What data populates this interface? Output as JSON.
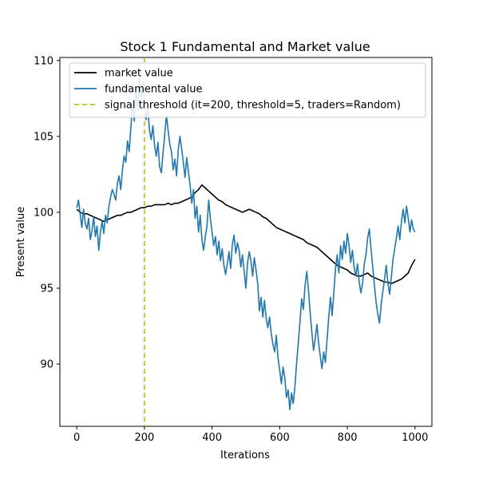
{
  "chart_data": {
    "type": "line",
    "title": "Stock 1 Fundamental and Market value",
    "xlabel": "Iterations",
    "ylabel": "Present value",
    "xlim": [
      -50,
      1050
    ],
    "ylim": [
      85.9,
      110.2
    ],
    "xticks": [
      0,
      200,
      400,
      600,
      800,
      1000
    ],
    "yticks": [
      90,
      95,
      100,
      105,
      110
    ],
    "legend_position": "top-left",
    "series": [
      {
        "name": "market value",
        "color": "#000000",
        "style": "solid",
        "points": [
          [
            0,
            100.2
          ],
          [
            10,
            100.0
          ],
          [
            20,
            99.9
          ],
          [
            30,
            99.9
          ],
          [
            40,
            99.8
          ],
          [
            50,
            99.7
          ],
          [
            60,
            99.6
          ],
          [
            70,
            99.5
          ],
          [
            80,
            99.4
          ],
          [
            90,
            99.5
          ],
          [
            100,
            99.6
          ],
          [
            110,
            99.7
          ],
          [
            120,
            99.8
          ],
          [
            130,
            99.8
          ],
          [
            140,
            99.9
          ],
          [
            150,
            100.0
          ],
          [
            160,
            100.0
          ],
          [
            170,
            100.1
          ],
          [
            180,
            100.2
          ],
          [
            190,
            100.3
          ],
          [
            200,
            100.3
          ],
          [
            210,
            100.4
          ],
          [
            220,
            100.4
          ],
          [
            230,
            100.5
          ],
          [
            240,
            100.5
          ],
          [
            250,
            100.5
          ],
          [
            260,
            100.5
          ],
          [
            270,
            100.6
          ],
          [
            280,
            100.5
          ],
          [
            290,
            100.6
          ],
          [
            300,
            100.6
          ],
          [
            310,
            100.7
          ],
          [
            320,
            100.8
          ],
          [
            330,
            100.9
          ],
          [
            340,
            101.0
          ],
          [
            350,
            101.3
          ],
          [
            360,
            101.5
          ],
          [
            370,
            101.8
          ],
          [
            380,
            101.6
          ],
          [
            390,
            101.4
          ],
          [
            400,
            101.2
          ],
          [
            410,
            101.0
          ],
          [
            420,
            100.8
          ],
          [
            430,
            100.7
          ],
          [
            440,
            100.5
          ],
          [
            450,
            100.4
          ],
          [
            460,
            100.3
          ],
          [
            470,
            100.2
          ],
          [
            480,
            100.1
          ],
          [
            490,
            100.0
          ],
          [
            500,
            100.1
          ],
          [
            510,
            100.2
          ],
          [
            520,
            100.1
          ],
          [
            530,
            100.0
          ],
          [
            540,
            99.9
          ],
          [
            550,
            99.7
          ],
          [
            560,
            99.6
          ],
          [
            570,
            99.4
          ],
          [
            580,
            99.2
          ],
          [
            590,
            99.0
          ],
          [
            600,
            98.9
          ],
          [
            610,
            98.8
          ],
          [
            620,
            98.7
          ],
          [
            630,
            98.6
          ],
          [
            640,
            98.5
          ],
          [
            650,
            98.4
          ],
          [
            660,
            98.3
          ],
          [
            670,
            98.2
          ],
          [
            680,
            98.0
          ],
          [
            690,
            97.9
          ],
          [
            700,
            97.8
          ],
          [
            710,
            97.7
          ],
          [
            720,
            97.5
          ],
          [
            730,
            97.3
          ],
          [
            740,
            97.1
          ],
          [
            750,
            96.9
          ],
          [
            760,
            96.7
          ],
          [
            770,
            96.5
          ],
          [
            780,
            96.4
          ],
          [
            790,
            96.3
          ],
          [
            800,
            96.2
          ],
          [
            810,
            96.0
          ],
          [
            820,
            95.9
          ],
          [
            830,
            95.8
          ],
          [
            840,
            95.8
          ],
          [
            850,
            95.9
          ],
          [
            860,
            96.0
          ],
          [
            870,
            95.8
          ],
          [
            880,
            95.7
          ],
          [
            890,
            95.6
          ],
          [
            900,
            95.5
          ],
          [
            910,
            95.4
          ],
          [
            920,
            95.4
          ],
          [
            930,
            95.3
          ],
          [
            940,
            95.4
          ],
          [
            950,
            95.5
          ],
          [
            960,
            95.6
          ],
          [
            970,
            95.8
          ],
          [
            980,
            96.0
          ],
          [
            990,
            96.5
          ],
          [
            1000,
            96.9
          ]
        ]
      },
      {
        "name": "fundamental value",
        "color": "#1f77b4",
        "style": "solid",
        "points": [
          [
            0,
            100.3
          ],
          [
            5,
            100.8
          ],
          [
            10,
            99.9
          ],
          [
            15,
            99.0
          ],
          [
            20,
            100.2
          ],
          [
            25,
            99.3
          ],
          [
            30,
            98.9
          ],
          [
            35,
            99.6
          ],
          [
            40,
            98.2
          ],
          [
            45,
            98.8
          ],
          [
            50,
            99.7
          ],
          [
            55,
            98.4
          ],
          [
            60,
            99.1
          ],
          [
            65,
            97.5
          ],
          [
            70,
            98.7
          ],
          [
            75,
            99.4
          ],
          [
            80,
            98.6
          ],
          [
            85,
            99.8
          ],
          [
            90,
            99.3
          ],
          [
            95,
            100.4
          ],
          [
            100,
            101.0
          ],
          [
            105,
            101.5
          ],
          [
            110,
            101.2
          ],
          [
            115,
            100.8
          ],
          [
            120,
            101.9
          ],
          [
            125,
            102.4
          ],
          [
            130,
            101.5
          ],
          [
            135,
            102.8
          ],
          [
            140,
            103.7
          ],
          [
            145,
            103.3
          ],
          [
            150,
            104.7
          ],
          [
            155,
            104.0
          ],
          [
            160,
            105.6
          ],
          [
            165,
            107.3
          ],
          [
            170,
            106.0
          ],
          [
            175,
            108.1
          ],
          [
            180,
            106.7
          ],
          [
            185,
            108.9
          ],
          [
            190,
            107.5
          ],
          [
            195,
            108.6
          ],
          [
            200,
            107.3
          ],
          [
            205,
            106.1
          ],
          [
            210,
            106.9
          ],
          [
            215,
            105.4
          ],
          [
            220,
            104.8
          ],
          [
            225,
            105.7
          ],
          [
            230,
            104.4
          ],
          [
            235,
            103.7
          ],
          [
            240,
            104.6
          ],
          [
            245,
            103.0
          ],
          [
            250,
            102.6
          ],
          [
            255,
            103.9
          ],
          [
            260,
            105.1
          ],
          [
            265,
            106.4
          ],
          [
            270,
            105.4
          ],
          [
            275,
            104.5
          ],
          [
            280,
            104.0
          ],
          [
            285,
            102.8
          ],
          [
            290,
            103.5
          ],
          [
            295,
            102.4
          ],
          [
            300,
            104.1
          ],
          [
            305,
            105.0
          ],
          [
            310,
            104.2
          ],
          [
            315,
            103.3
          ],
          [
            320,
            102.3
          ],
          [
            325,
            103.6
          ],
          [
            330,
            102.7
          ],
          [
            335,
            101.8
          ],
          [
            340,
            100.6
          ],
          [
            345,
            101.5
          ],
          [
            350,
            99.6
          ],
          [
            355,
            100.4
          ],
          [
            360,
            98.7
          ],
          [
            365,
            99.8
          ],
          [
            370,
            98.2
          ],
          [
            375,
            97.5
          ],
          [
            380,
            98.4
          ],
          [
            385,
            99.1
          ],
          [
            390,
            100.8
          ],
          [
            395,
            99.6
          ],
          [
            400,
            98.7
          ],
          [
            405,
            97.8
          ],
          [
            410,
            98.4
          ],
          [
            415,
            97.2
          ],
          [
            420,
            98.1
          ],
          [
            425,
            96.8
          ],
          [
            430,
            97.6
          ],
          [
            435,
            96.5
          ],
          [
            440,
            95.9
          ],
          [
            445,
            96.6
          ],
          [
            450,
            97.4
          ],
          [
            455,
            96.3
          ],
          [
            460,
            97.9
          ],
          [
            465,
            98.5
          ],
          [
            470,
            97.3
          ],
          [
            475,
            98.0
          ],
          [
            480,
            97.5
          ],
          [
            485,
            96.4
          ],
          [
            490,
            97.2
          ],
          [
            495,
            96.1
          ],
          [
            500,
            95.0
          ],
          [
            505,
            96.7
          ],
          [
            510,
            97.4
          ],
          [
            515,
            96.8
          ],
          [
            520,
            95.8
          ],
          [
            525,
            97.0
          ],
          [
            530,
            96.2
          ],
          [
            535,
            95.3
          ],
          [
            540,
            93.5
          ],
          [
            545,
            94.4
          ],
          [
            550,
            93.1
          ],
          [
            555,
            94.2
          ],
          [
            560,
            93.0
          ],
          [
            565,
            92.4
          ],
          [
            570,
            93.1
          ],
          [
            575,
            92.0
          ],
          [
            580,
            91.3
          ],
          [
            585,
            90.8
          ],
          [
            590,
            91.9
          ],
          [
            595,
            90.4
          ],
          [
            600,
            89.6
          ],
          [
            605,
            88.7
          ],
          [
            610,
            89.8
          ],
          [
            615,
            89.1
          ],
          [
            620,
            87.8
          ],
          [
            625,
            88.3
          ],
          [
            630,
            87.0
          ],
          [
            635,
            88.1
          ],
          [
            640,
            87.4
          ],
          [
            645,
            88.5
          ],
          [
            650,
            90.1
          ],
          [
            655,
            91.4
          ],
          [
            660,
            92.8
          ],
          [
            665,
            94.3
          ],
          [
            670,
            93.6
          ],
          [
            675,
            95.2
          ],
          [
            680,
            96.1
          ],
          [
            685,
            94.9
          ],
          [
            690,
            93.4
          ],
          [
            695,
            92.1
          ],
          [
            700,
            90.9
          ],
          [
            705,
            91.7
          ],
          [
            710,
            92.6
          ],
          [
            715,
            91.4
          ],
          [
            720,
            90.5
          ],
          [
            725,
            89.7
          ],
          [
            730,
            90.8
          ],
          [
            735,
            90.1
          ],
          [
            740,
            91.6
          ],
          [
            745,
            93.1
          ],
          [
            750,
            94.4
          ],
          [
            755,
            93.2
          ],
          [
            760,
            94.7
          ],
          [
            765,
            96.3
          ],
          [
            770,
            97.2
          ],
          [
            775,
            96.0
          ],
          [
            780,
            97.8
          ],
          [
            785,
            96.9
          ],
          [
            790,
            98.1
          ],
          [
            795,
            97.3
          ],
          [
            800,
            98.6
          ],
          [
            805,
            97.8
          ],
          [
            810,
            96.7
          ],
          [
            815,
            97.5
          ],
          [
            820,
            96.4
          ],
          [
            825,
            95.8
          ],
          [
            830,
            96.6
          ],
          [
            835,
            95.4
          ],
          [
            840,
            94.7
          ],
          [
            845,
            95.3
          ],
          [
            850,
            96.6
          ],
          [
            855,
            97.2
          ],
          [
            860,
            98.3
          ],
          [
            865,
            98.9
          ],
          [
            870,
            97.6
          ],
          [
            875,
            96.4
          ],
          [
            880,
            95.2
          ],
          [
            885,
            94.1
          ],
          [
            890,
            93.3
          ],
          [
            895,
            92.7
          ],
          [
            900,
            93.9
          ],
          [
            905,
            94.8
          ],
          [
            910,
            95.6
          ],
          [
            915,
            96.5
          ],
          [
            920,
            95.3
          ],
          [
            925,
            94.6
          ],
          [
            930,
            95.7
          ],
          [
            935,
            96.9
          ],
          [
            940,
            97.6
          ],
          [
            945,
            98.3
          ],
          [
            950,
            99.1
          ],
          [
            955,
            98.2
          ],
          [
            960,
            99.4
          ],
          [
            965,
            100.2
          ],
          [
            970,
            99.3
          ],
          [
            975,
            100.4
          ],
          [
            980,
            99.6
          ],
          [
            985,
            98.7
          ],
          [
            990,
            99.5
          ],
          [
            995,
            98.9
          ],
          [
            1000,
            98.7
          ]
        ]
      }
    ],
    "annotations": [
      {
        "type": "vline",
        "x": 200,
        "color": "#bcbd22",
        "style": "dashed",
        "label": "signal threshold (it=200, threshold=5, traders=Random)"
      }
    ]
  }
}
